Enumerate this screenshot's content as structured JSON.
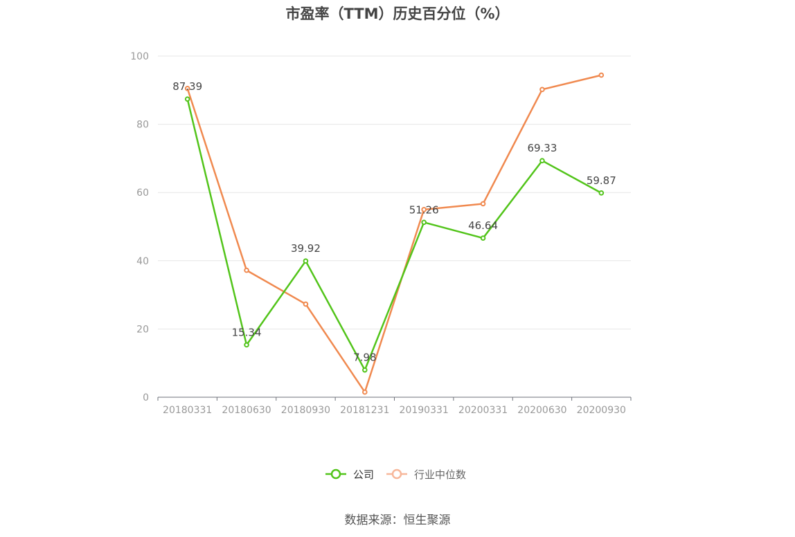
{
  "title": "市盈率（TTM）历史百分位（%）",
  "source": "数据来源：恒生聚源",
  "chart_data": {
    "type": "line",
    "title": "市盈率（TTM）历史百分位（%）",
    "categories": [
      "20180331",
      "20180630",
      "20180930",
      "20181231",
      "20190331",
      "20200331",
      "20200630",
      "20200930"
    ],
    "ylim": [
      0,
      100
    ],
    "yticks": [
      0,
      20,
      40,
      60,
      80,
      100
    ],
    "grid": true,
    "legend_position": "bottom",
    "series": [
      {
        "name": "公司",
        "color": "#52c41a",
        "values": [
          87.39,
          15.34,
          39.92,
          7.98,
          51.26,
          46.64,
          69.33,
          59.87
        ],
        "labels": [
          "87.39",
          "15.34",
          "39.92",
          "7.98",
          "51.26",
          "46.64",
          "69.33",
          "59.87"
        ]
      },
      {
        "name": "行业中位数",
        "color": "#f0894f",
        "legend_color": "#f7b79a",
        "values": [
          90.5,
          37.2,
          27.3,
          1.5,
          55.0,
          56.7,
          90.2,
          94.4
        ]
      }
    ]
  }
}
